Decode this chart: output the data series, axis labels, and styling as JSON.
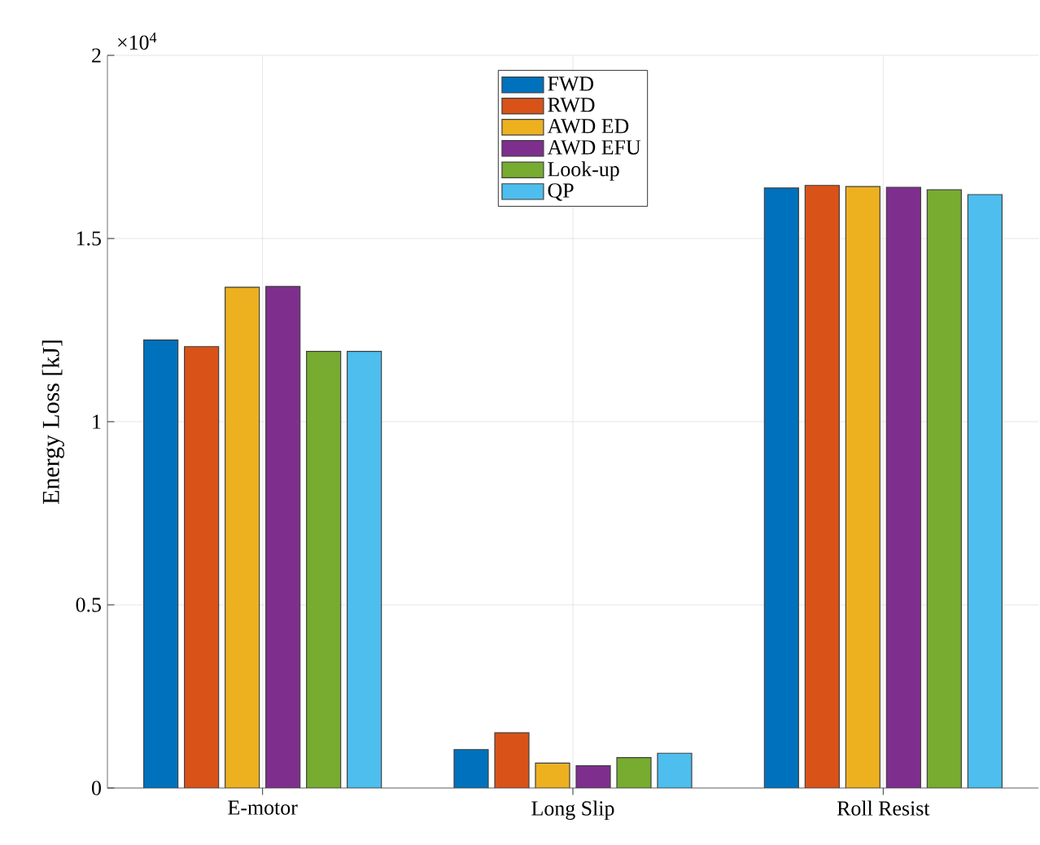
{
  "chart_data": {
    "type": "bar",
    "ylabel": "Energy Loss [kJ]",
    "categories": [
      "E-motor",
      "Long Slip",
      "Roll Resist"
    ],
    "series": [
      {
        "name": "FWD",
        "color": "#0072bd",
        "values": [
          1.223,
          0.105,
          1.638
        ]
      },
      {
        "name": "RWD",
        "color": "#d95319",
        "values": [
          1.205,
          0.151,
          1.645
        ]
      },
      {
        "name": "AWD ED",
        "color": "#edb120",
        "values": [
          1.367,
          0.068,
          1.642
        ]
      },
      {
        "name": "AWD EFU",
        "color": "#7e2f8e",
        "values": [
          1.369,
          0.061,
          1.64
        ]
      },
      {
        "name": "Look-up",
        "color": "#77ac30",
        "values": [
          1.192,
          0.083,
          1.633
        ]
      },
      {
        "name": "QP",
        "color": "#4dbeee",
        "values": [
          1.192,
          0.095,
          1.62
        ]
      }
    ],
    "ylim": [
      0,
      2
    ],
    "yticks": [
      0,
      0.5,
      1,
      1.5,
      2
    ],
    "annotations": [
      "×10$^{4}$"
    ],
    "grid": true,
    "legend": "top"
  }
}
